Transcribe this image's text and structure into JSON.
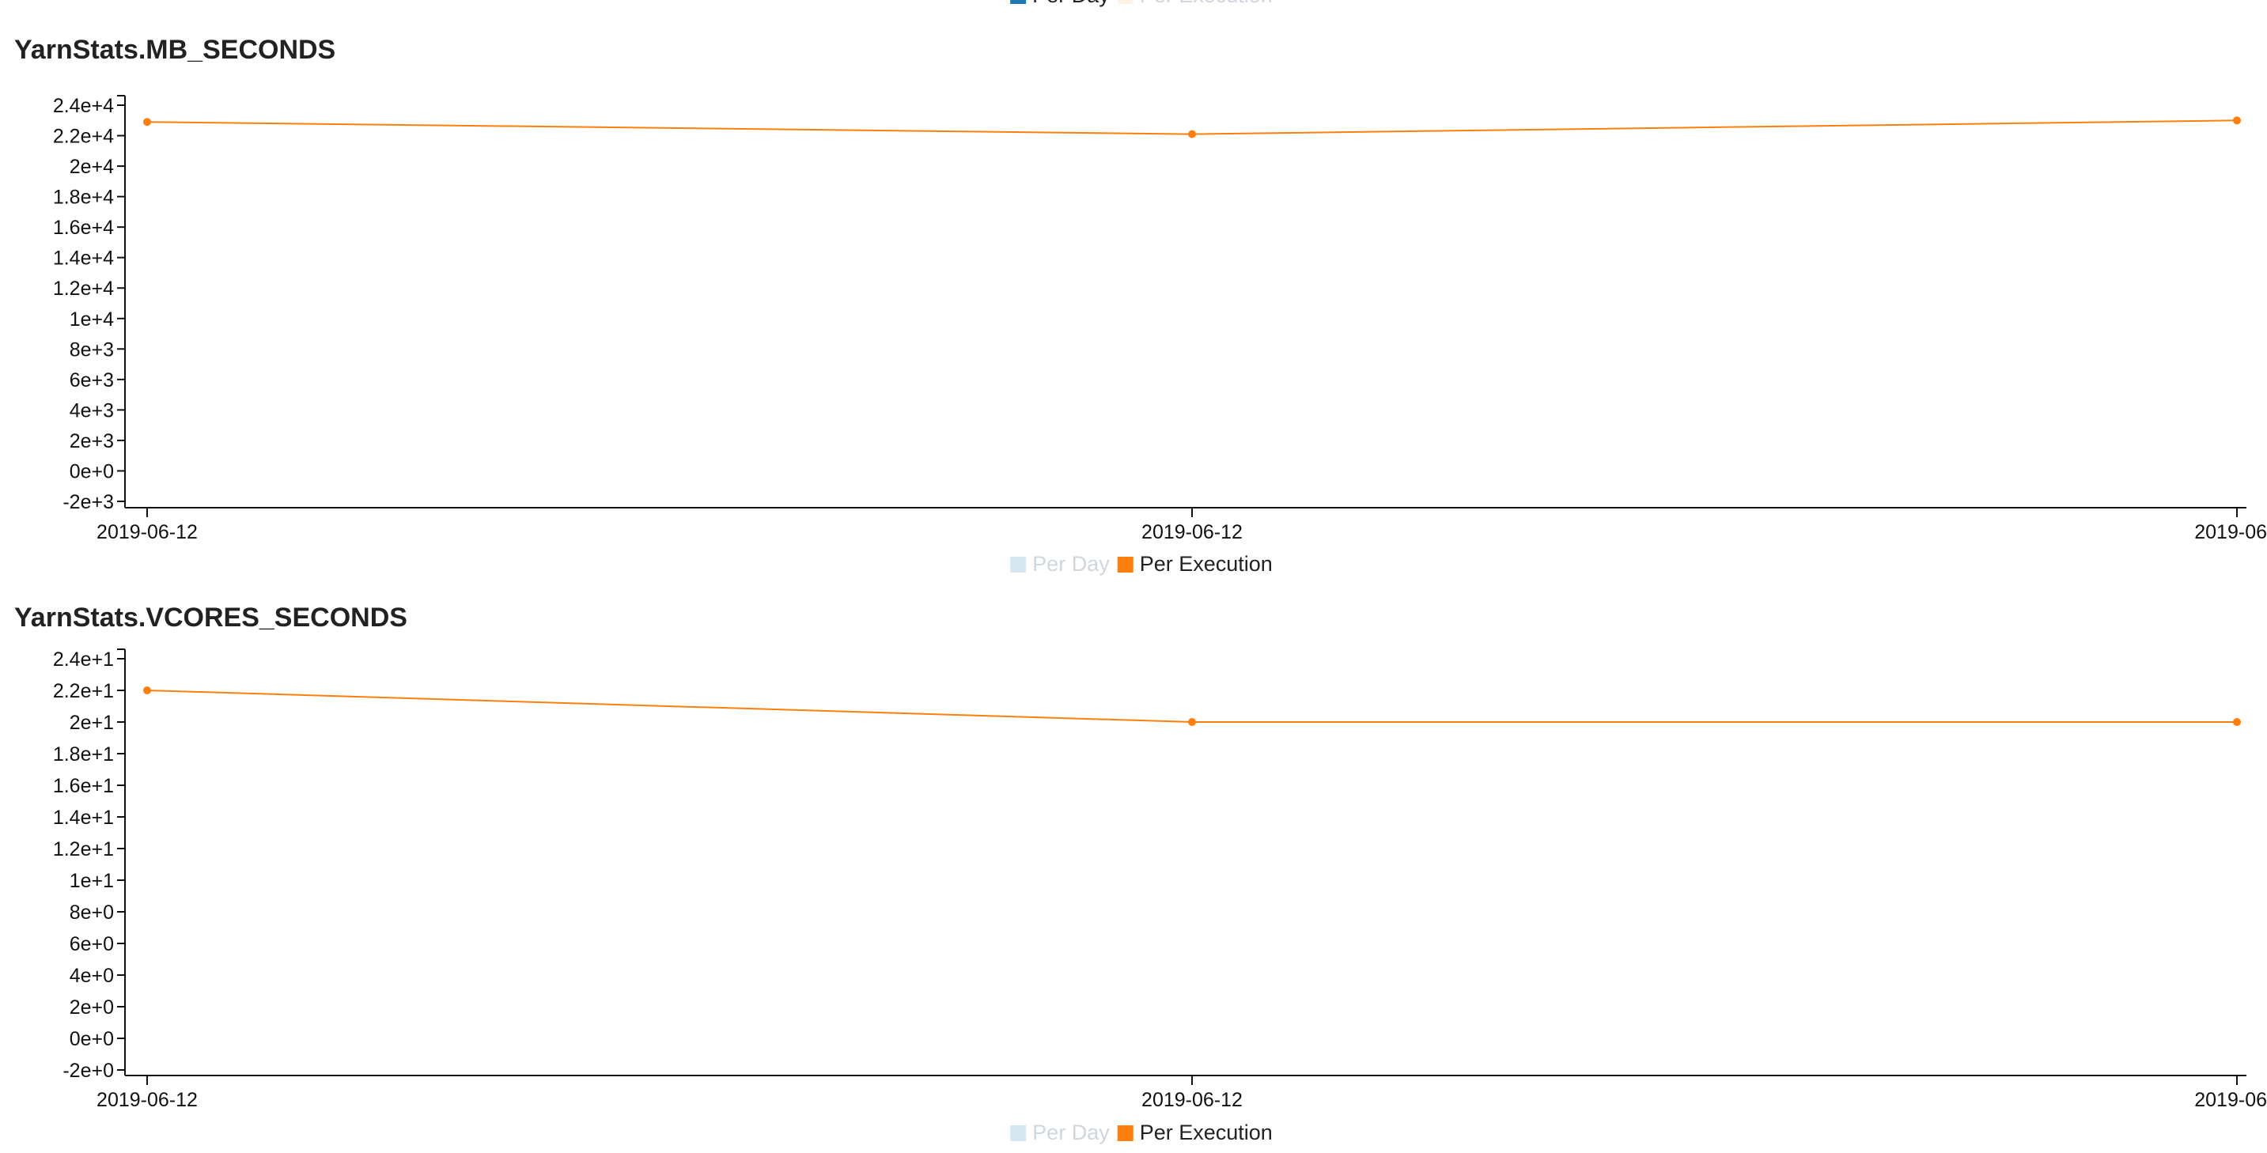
{
  "legend_top": {
    "items": [
      {
        "label": "Per Day",
        "color": "#1f77b4",
        "active": true
      },
      {
        "label": "Per Execution",
        "color": "#ffbb78",
        "active": false
      }
    ]
  },
  "chart_data": [
    {
      "type": "line",
      "title": "YarnStats.MB_SECONDS",
      "xlabel": "",
      "ylabel": "",
      "x": [
        "2019-06-12",
        "2019-06-12",
        "2019-06"
      ],
      "ylim": [
        -2000,
        24000
      ],
      "yticks": [
        -2000,
        0,
        2000,
        4000,
        6000,
        8000,
        10000,
        12000,
        14000,
        16000,
        18000,
        20000,
        22000,
        24000
      ],
      "ytick_labels": [
        "-2e+3",
        "0e+0",
        "2e+3",
        "4e+3",
        "6e+3",
        "8e+3",
        "1e+4",
        "1.2e+4",
        "1.4e+4",
        "1.6e+4",
        "1.8e+4",
        "2e+4",
        "2.2e+4",
        "2.4e+4"
      ],
      "grid": false,
      "legend_position": "bottom-center",
      "legend": [
        {
          "label": "Per Day",
          "color": "#1f77b4",
          "active": false
        },
        {
          "label": "Per Execution",
          "color": "#ff7f0e",
          "active": true
        }
      ],
      "series": [
        {
          "name": "Per Execution",
          "color": "#ff7f0e",
          "values": [
            22900,
            22100,
            23000
          ]
        }
      ]
    },
    {
      "type": "line",
      "title": "YarnStats.VCORES_SECONDS",
      "xlabel": "",
      "ylabel": "",
      "x": [
        "2019-06-12",
        "2019-06-12",
        "2019-06"
      ],
      "ylim": [
        -2,
        24
      ],
      "yticks": [
        -2,
        0,
        2,
        4,
        6,
        8,
        10,
        12,
        14,
        16,
        18,
        20,
        22,
        24
      ],
      "ytick_labels": [
        "-2e+0",
        "0e+0",
        "2e+0",
        "4e+0",
        "6e+0",
        "8e+0",
        "1e+1",
        "1.2e+1",
        "1.4e+1",
        "1.6e+1",
        "1.8e+1",
        "2e+1",
        "2.2e+1",
        "2.4e+1"
      ],
      "grid": false,
      "legend_position": "bottom-center",
      "legend": [
        {
          "label": "Per Day",
          "color": "#1f77b4",
          "active": false
        },
        {
          "label": "Per Execution",
          "color": "#ff7f0e",
          "active": true
        }
      ],
      "series": [
        {
          "name": "Per Execution",
          "color": "#ff7f0e",
          "values": [
            22,
            20,
            20
          ]
        }
      ]
    }
  ]
}
